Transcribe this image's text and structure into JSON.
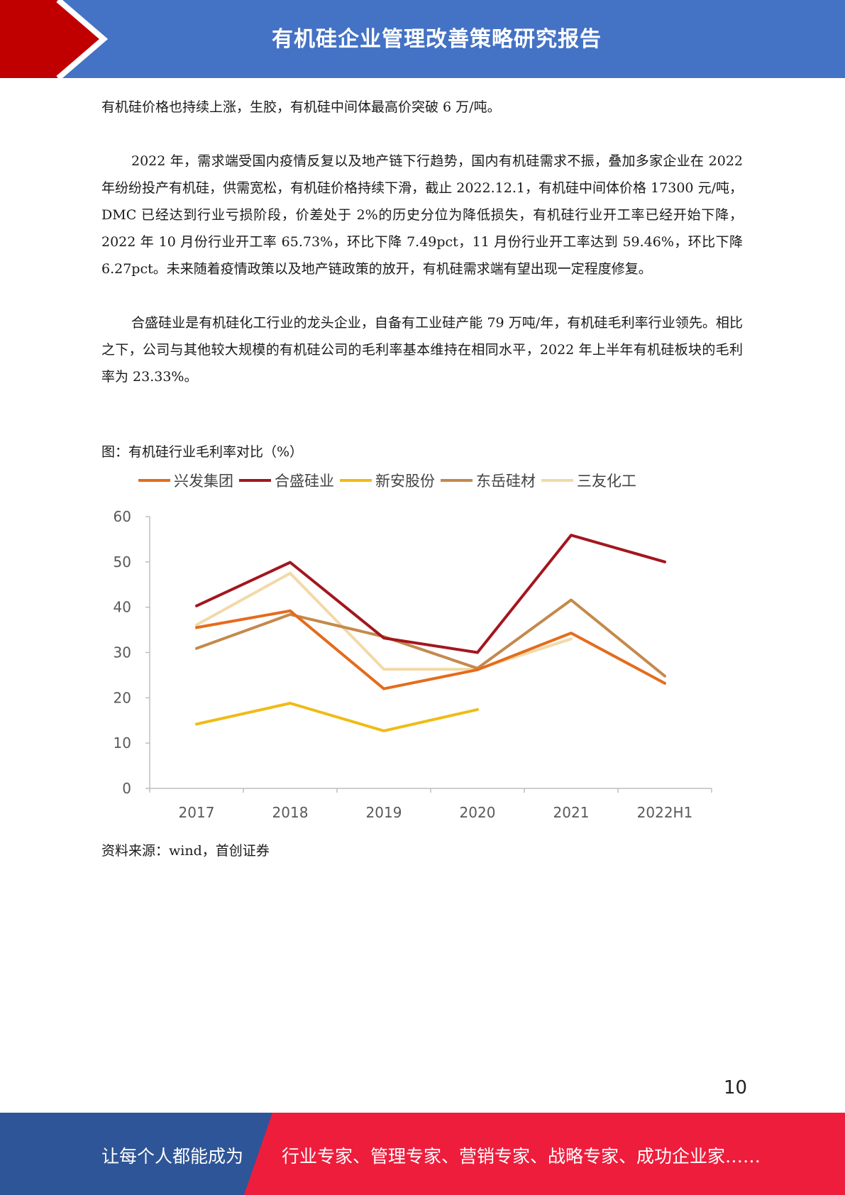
{
  "header": {
    "title": "有机硅企业管理改善策略研究报告",
    "colors": {
      "band": "#4472c4",
      "accent": "#c00000"
    }
  },
  "paragraphs": [
    "有机硅价格也持续上涨，生胶，有机硅中间体最高价突破 6 万/吨。",
    "2022 年，需求端受国内疫情反复以及地产链下行趋势，国内有机硅需求不振，叠加多家企业在 2022 年纷纷投产有机硅，供需宽松，有机硅价格持续下滑，截止 2022.12.1，有机硅中间体价格 17300 元/吨，DMC 已经达到行业亏损阶段，价差处于 2%的历史分位为降低损失，有机硅行业开工率已经开始下降，2022 年 10 月份行业开工率 65.73%，环比下降 7.49pct，11 月份行业开工率达到 59.46%，环比下降 6.27pct。未来随着疫情政策以及地产链政策的放开，有机硅需求端有望出现一定程度修复。",
    "合盛硅业是有机硅化工行业的龙头企业，自备有工业硅产能 79 万吨/年，有机硅毛利率行业领先。相比之下，公司与其他较大规模的有机硅公司的毛利率基本维持在相同水平，2022 年上半年有机硅板块的毛利率为 23.33%。"
  ],
  "figure": {
    "caption": "图：有机硅行业毛利率对比（%）",
    "source": "资料来源：wind，首创证券"
  },
  "chart_data": {
    "type": "line",
    "categories": [
      "2017",
      "2018",
      "2019",
      "2020",
      "2021",
      "2022H1"
    ],
    "ylim": [
      0,
      60
    ],
    "yticks": [
      0,
      10,
      20,
      30,
      40,
      50,
      60
    ],
    "legend_position": "top",
    "grid": false,
    "series": [
      {
        "name": "兴发集团",
        "color": "#e46c1c",
        "values": [
          35.5,
          39.2,
          22,
          26.2,
          34.3,
          23.2
        ]
      },
      {
        "name": "合盛硅业",
        "color": "#a3161e",
        "values": [
          40.3,
          49.9,
          33.2,
          30,
          55.9,
          50
        ]
      },
      {
        "name": "新安股份",
        "color": "#f0bb16",
        "values": [
          14.2,
          18.8,
          12.7,
          17.4,
          null,
          null
        ]
      },
      {
        "name": "东岳硅材",
        "color": "#c4894c",
        "values": [
          30.9,
          38.4,
          33.5,
          26.5,
          41.6,
          24.8
        ]
      },
      {
        "name": "三友化工",
        "color": "#f2d9a8",
        "values": [
          36.1,
          47.5,
          26.3,
          26.3,
          33,
          null
        ]
      }
    ]
  },
  "page_number": "10",
  "footer": {
    "left_text": "让每个人都能成为",
    "right_text": "行业专家、管理专家、营销专家、战略专家、成功企业家……",
    "colors": {
      "left": "#2e5597",
      "right": "#ee1d3c"
    }
  }
}
